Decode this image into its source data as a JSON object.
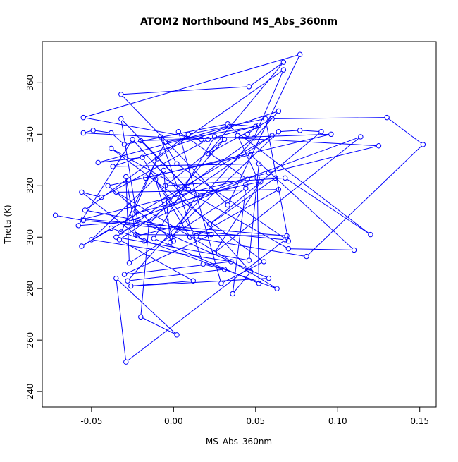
{
  "chart_data": {
    "type": "line",
    "title": "ATOM2 Northbound MS_Abs_360nm",
    "xlabel": "MS_Abs_360nm",
    "ylabel": "Theta (K)",
    "xlim": [
      -0.08,
      0.16
    ],
    "ylim": [
      234,
      376
    ],
    "xticks": [
      -0.05,
      0.0,
      0.05,
      0.1,
      0.15
    ],
    "xtick_labels": [
      "-0.05",
      "0.00",
      "0.05",
      "0.10",
      "0.15"
    ],
    "yticks": [
      240,
      260,
      280,
      300,
      320,
      340,
      360
    ],
    "ytick_labels": [
      "240",
      "260",
      "280",
      "300",
      "320",
      "340",
      "360"
    ],
    "grid": false,
    "legend": "none",
    "series": [
      {
        "color": "#0000ff",
        "marker": "open-circle",
        "points": [
          [
            -0.072,
            308.5
          ],
          [
            -0.055,
            306.5
          ],
          [
            0.068,
            299.0
          ],
          [
            -0.029,
            251.5
          ],
          [
            -0.035,
            284.0
          ],
          [
            0.002,
            262.0
          ],
          [
            -0.02,
            269.0
          ],
          [
            -0.015,
            305.0
          ],
          [
            0.031,
            338.0
          ],
          [
            -0.005,
            320.0
          ],
          [
            0.068,
            323.0
          ],
          [
            0.12,
            301.0
          ],
          [
            0.034,
            343.0
          ],
          [
            -0.046,
            329.0
          ],
          [
            -0.019,
            331.0
          ],
          [
            0.01,
            300.0
          ],
          [
            0.081,
            292.5
          ],
          [
            0.152,
            336.0
          ],
          [
            0.13,
            346.5
          ],
          [
            0.06,
            346.0
          ],
          [
            0.021,
            332.5
          ],
          [
            0.067,
            368.0
          ],
          [
            0.046,
            358.5
          ],
          [
            -0.032,
            355.5
          ],
          [
            0.033,
            312.5
          ],
          [
            0.077,
            371.0
          ],
          [
            -0.055,
            346.5
          ],
          [
            0.017,
            338.0
          ],
          [
            -0.055,
            340.5
          ],
          [
            -0.049,
            341.5
          ],
          [
            -0.038,
            340.5
          ],
          [
            -0.03,
            336.0
          ],
          [
            0.033,
            344.0
          ],
          [
            0.05,
            343.0
          ],
          [
            -0.005,
            337.0
          ],
          [
            -0.032,
            302.0
          ],
          [
            0.045,
            322.5
          ],
          [
            0.003,
            341.0
          ],
          [
            0.029,
            282.0
          ],
          [
            0.055,
            290.5
          ],
          [
            -0.038,
            334.5
          ],
          [
            0.07,
            295.5
          ],
          [
            0.11,
            295.0
          ],
          [
            0.047,
            332.0
          ],
          [
            -0.04,
            320.0
          ],
          [
            0.0,
            298.5
          ],
          [
            -0.011,
            322.5
          ],
          [
            0.014,
            300.5
          ],
          [
            0.064,
            318.5
          ],
          [
            -0.035,
            317.5
          ],
          [
            0.063,
            280.0
          ],
          [
            -0.038,
            303.5
          ],
          [
            -0.056,
            296.5
          ],
          [
            0.06,
            339.5
          ],
          [
            -0.033,
            299.0
          ],
          [
            0.012,
            283.0
          ],
          [
            -0.026,
            281.0
          ],
          [
            0.058,
            284.0
          ],
          [
            -0.022,
            306.5
          ],
          [
            -0.032,
            346.0
          ],
          [
            0.009,
            318.5
          ],
          [
            -0.02,
            337.5
          ],
          [
            0.096,
            340.0
          ],
          [
            -0.017,
            323.0
          ],
          [
            0.062,
            323.0
          ],
          [
            0.022,
            305.0
          ],
          [
            0.09,
            341.0
          ],
          [
            0.077,
            341.5
          ],
          [
            0.064,
            341.0
          ],
          [
            0.004,
            304.5
          ],
          [
            -0.022,
            300.5
          ],
          [
            -0.018,
            298.5
          ],
          [
            -0.056,
            317.5
          ],
          [
            -0.044,
            315.5
          ],
          [
            0.021,
            338.0
          ],
          [
            0.052,
            343.5
          ],
          [
            0.045,
            340.0
          ],
          [
            0.039,
            339.5
          ],
          [
            0.051,
            323.0
          ],
          [
            0.052,
            282.0
          ],
          [
            -0.012,
            299.5
          ],
          [
            0.025,
            339.0
          ],
          [
            0.125,
            335.5
          ],
          [
            0.058,
            325.0
          ],
          [
            -0.055,
            307.0
          ],
          [
            0.069,
            300.5
          ],
          [
            -0.023,
            301.0
          ],
          [
            -0.029,
            323.5
          ],
          [
            -0.027,
            290.0
          ],
          [
            0.044,
            319.0
          ],
          [
            0.036,
            278.0
          ],
          [
            0.047,
            286.5
          ],
          [
            -0.025,
            338.0
          ],
          [
            -0.058,
            304.5
          ],
          [
            -0.028,
            306.0
          ],
          [
            0.114,
            339.0
          ],
          [
            0.025,
            294.0
          ],
          [
            0.053,
            321.5
          ],
          [
            0.014,
            316.5
          ],
          [
            -0.002,
            298.0
          ],
          [
            -0.006,
            326.0
          ],
          [
            -0.05,
            299.0
          ],
          [
            0.035,
            290.5
          ],
          [
            -0.03,
            285.5
          ],
          [
            0.023,
            301.0
          ],
          [
            -0.054,
            310.5
          ],
          [
            0.009,
            340.0
          ],
          [
            0.056,
            346.0
          ],
          [
            0.07,
            298.5
          ],
          [
            0.002,
            328.5
          ],
          [
            -0.008,
            339.0
          ],
          [
            0.018,
            289.5
          ],
          [
            0.031,
            287.5
          ],
          [
            -0.028,
            283.0
          ],
          [
            0.064,
            349.0
          ],
          [
            -0.037,
            327.5
          ],
          [
            0.052,
            328.5
          ],
          [
            0.046,
            291.0
          ],
          [
            -0.035,
            300.0
          ],
          [
            0.049,
            338.5
          ],
          [
            0.067,
            365.0
          ],
          [
            -0.01,
            330.5
          ],
          [
            -0.025,
            309.0
          ],
          [
            0.044,
            320.5
          ]
        ]
      }
    ]
  }
}
